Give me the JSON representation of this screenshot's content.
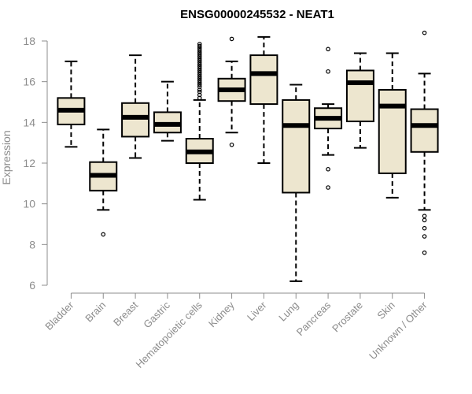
{
  "chart_data": {
    "type": "boxplot",
    "title": "ENSG00000245532 - NEAT1",
    "xlabel": "",
    "ylabel": "Expression",
    "ylim": [
      6,
      18.3
    ],
    "yticks": [
      6,
      8,
      10,
      12,
      14,
      16,
      18
    ],
    "box_fill": "#ede6cf",
    "categories": [
      "Bladder",
      "Brain",
      "Breast",
      "Gastric",
      "Hematopoietic cells",
      "Kidney",
      "Liver",
      "Lung",
      "Pancreas",
      "Prostate",
      "Skin",
      "Unknown / Other"
    ],
    "boxes": [
      {
        "name": "Bladder",
        "low": 12.8,
        "q1": 13.9,
        "median": 14.6,
        "q3": 15.2,
        "high": 17.0,
        "outliers": []
      },
      {
        "name": "Brain",
        "low": 9.7,
        "q1": 10.65,
        "median": 11.4,
        "q3": 12.05,
        "high": 13.65,
        "outliers": [
          8.5
        ]
      },
      {
        "name": "Breast",
        "low": 12.25,
        "q1": 13.3,
        "median": 14.25,
        "q3": 14.95,
        "high": 17.3,
        "outliers": []
      },
      {
        "name": "Gastric",
        "low": 13.1,
        "q1": 13.5,
        "median": 13.9,
        "q3": 14.5,
        "high": 16.0,
        "outliers": []
      },
      {
        "name": "Hematopoietic cells",
        "low": 10.2,
        "q1": 12.0,
        "median": 12.55,
        "q3": 13.2,
        "high": 15.1,
        "outliers": [
          15.2,
          15.35,
          15.5,
          15.6,
          15.75,
          15.85,
          15.95,
          16.05,
          16.15,
          16.25,
          16.35,
          16.45,
          16.55,
          16.65,
          16.75,
          16.85,
          16.95,
          17.05,
          17.15,
          17.25,
          17.35,
          17.45,
          17.55,
          17.65,
          17.75,
          17.85
        ]
      },
      {
        "name": "Kidney",
        "low": 13.5,
        "q1": 15.05,
        "median": 15.6,
        "q3": 16.15,
        "high": 17.0,
        "outliers": [
          12.9,
          18.1
        ]
      },
      {
        "name": "Liver",
        "low": 12.0,
        "q1": 14.9,
        "median": 16.4,
        "q3": 17.3,
        "high": 18.2,
        "outliers": []
      },
      {
        "name": "Lung",
        "low": 6.2,
        "q1": 10.55,
        "median": 13.85,
        "q3": 15.1,
        "high": 15.85,
        "outliers": []
      },
      {
        "name": "Pancreas",
        "low": 12.4,
        "q1": 13.7,
        "median": 14.2,
        "q3": 14.7,
        "high": 14.9,
        "outliers": [
          10.8,
          11.7,
          16.5,
          17.6
        ]
      },
      {
        "name": "Prostate",
        "low": 12.75,
        "q1": 14.05,
        "median": 15.95,
        "q3": 16.55,
        "high": 17.4,
        "outliers": []
      },
      {
        "name": "Skin",
        "low": 10.3,
        "q1": 11.5,
        "median": 14.8,
        "q3": 15.6,
        "high": 17.4,
        "outliers": []
      },
      {
        "name": "Unknown / Other",
        "low": 9.7,
        "q1": 12.55,
        "median": 13.85,
        "q3": 14.65,
        "high": 16.4,
        "outliers": [
          7.6,
          8.4,
          8.8,
          9.2,
          9.4,
          18.4
        ]
      }
    ]
  }
}
